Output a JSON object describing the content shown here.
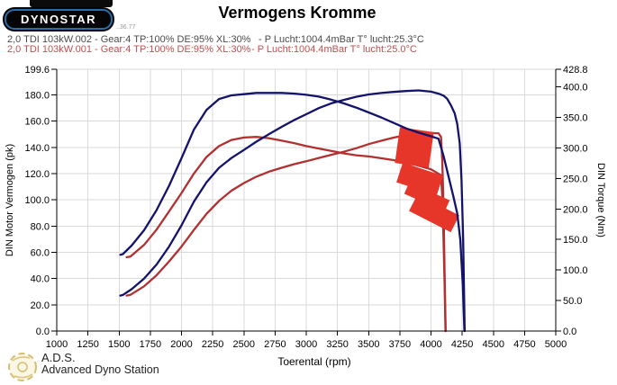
{
  "header": {
    "logo_text": "DYNOSTAR",
    "logo_watermark": "..36.77",
    "title": "Vermogens Kromme"
  },
  "legend": [
    {
      "label": "2,0 TDI 103kW.002 - Gear:4 TP:100% DE:95% XL:30%",
      "conditions": "- P Lucht:1004.4mBar T° lucht:25.3°C",
      "color": "#4a4a4a"
    },
    {
      "label": "2,0 TDI 103kW.001 - Gear:4 TP:100% DE:95% XL:30%",
      "conditions": "- P Lucht:1004.4mBar T° lucht:25.0°C",
      "color": "#c24f4f"
    }
  ],
  "chart_data": {
    "type": "line",
    "title": "Vermogens Kromme",
    "xlabel": "Toerental (rpm)",
    "ylabel_left": "DIN Motor Vermogen (pk)",
    "ylabel_right": "DIN Torque (Nm)",
    "x_range": [
      1000,
      5000
    ],
    "left_range": [
      0,
      199.6
    ],
    "right_range": [
      0,
      428.8
    ],
    "grid": true,
    "x_ticks": [
      "1000",
      "1250",
      "1500",
      "1750",
      "2000",
      "2250",
      "2500",
      "2750",
      "3000",
      "3250",
      "3500",
      "3750",
      "4000",
      "4250",
      "4500",
      "4750",
      "5000"
    ],
    "left_ticks": [
      "199.6",
      "180.0",
      "160.0",
      "140.0",
      "120.0",
      "100.0",
      "80.0",
      "60.0",
      "40.0",
      "20.0",
      "0.0"
    ],
    "right_ticks": [
      "428.8",
      "400.0",
      "350.0",
      "300.0",
      "250.0",
      "200.0",
      "150.0",
      "100.0",
      "50.0",
      "0.0"
    ],
    "series": [
      {
        "name": "torque-run-001",
        "run": "2,0 TDI 103kW.001",
        "axis": "right",
        "unit": "Nm",
        "color": "#b23030",
        "points": [
          [
            1560,
            121
          ],
          [
            1590,
            122
          ],
          [
            1700,
            141
          ],
          [
            1800,
            166
          ],
          [
            1900,
            196
          ],
          [
            2000,
            226
          ],
          [
            2100,
            258
          ],
          [
            2200,
            285
          ],
          [
            2300,
            303
          ],
          [
            2400,
            313
          ],
          [
            2500,
            317
          ],
          [
            2600,
            318
          ],
          [
            2700,
            316
          ],
          [
            2800,
            312
          ],
          [
            2900,
            308
          ],
          [
            3000,
            303
          ],
          [
            3100,
            299
          ],
          [
            3200,
            295
          ],
          [
            3300,
            291
          ],
          [
            3400,
            288
          ],
          [
            3500,
            286
          ],
          [
            3600,
            283
          ],
          [
            3700,
            280
          ],
          [
            3800,
            276
          ],
          [
            3900,
            271
          ],
          [
            4000,
            265
          ],
          [
            4080,
            255
          ],
          [
            4090,
            220
          ],
          [
            4100,
            150
          ],
          [
            4110,
            70
          ],
          [
            4116,
            0
          ]
        ]
      },
      {
        "name": "power-run-001",
        "run": "2,0 TDI 103kW.001",
        "axis": "left",
        "unit": "pk",
        "color": "#b23030",
        "points": [
          [
            1560,
            27
          ],
          [
            1590,
            27.6
          ],
          [
            1700,
            34.1
          ],
          [
            1800,
            42.5
          ],
          [
            1900,
            53.1
          ],
          [
            2000,
            64.4
          ],
          [
            2100,
            77.1
          ],
          [
            2200,
            89.3
          ],
          [
            2300,
            99.2
          ],
          [
            2400,
            107
          ],
          [
            2500,
            112.8
          ],
          [
            2600,
            117.7
          ],
          [
            2700,
            121.5
          ],
          [
            2800,
            124.4
          ],
          [
            2900,
            127.2
          ],
          [
            3000,
            129.4
          ],
          [
            3100,
            132
          ],
          [
            3200,
            134.4
          ],
          [
            3300,
            136.7
          ],
          [
            3400,
            139.4
          ],
          [
            3500,
            142.5
          ],
          [
            3600,
            145.1
          ],
          [
            3700,
            147.5
          ],
          [
            3800,
            149.4
          ],
          [
            3900,
            150.6
          ],
          [
            4000,
            151
          ],
          [
            4060,
            150.8
          ],
          [
            4080,
            148
          ],
          [
            4090,
            130
          ],
          [
            4100,
            95
          ],
          [
            4110,
            40
          ],
          [
            4118,
            0
          ]
        ]
      },
      {
        "name": "torque-run-002",
        "run": "2,0 TDI 103kW.002",
        "axis": "right",
        "unit": "Nm",
        "color": "#13136b",
        "points": [
          [
            1510,
            125
          ],
          [
            1530,
            126
          ],
          [
            1600,
            140
          ],
          [
            1700,
            165
          ],
          [
            1800,
            198
          ],
          [
            1900,
            238
          ],
          [
            2000,
            283
          ],
          [
            2100,
            330
          ],
          [
            2200,
            362
          ],
          [
            2300,
            380
          ],
          [
            2400,
            386
          ],
          [
            2500,
            388
          ],
          [
            2600,
            390
          ],
          [
            2700,
            390
          ],
          [
            2800,
            390
          ],
          [
            2900,
            389
          ],
          [
            3000,
            387
          ],
          [
            3100,
            384
          ],
          [
            3200,
            379
          ],
          [
            3300,
            373
          ],
          [
            3400,
            366
          ],
          [
            3500,
            358
          ],
          [
            3600,
            350
          ],
          [
            3700,
            341
          ],
          [
            3800,
            332
          ],
          [
            3900,
            325
          ],
          [
            4000,
            319
          ],
          [
            4060,
            315
          ],
          [
            4100,
            287
          ],
          [
            4150,
            245
          ],
          [
            4180,
            220
          ],
          [
            4210,
            193
          ],
          [
            4235,
            150
          ],
          [
            4255,
            75
          ],
          [
            4268,
            0
          ]
        ]
      },
      {
        "name": "power-run-002",
        "run": "2,0 TDI 103kW.002",
        "axis": "left",
        "unit": "pk",
        "color": "#13136b",
        "points": [
          [
            1510,
            27
          ],
          [
            1530,
            27.5
          ],
          [
            1600,
            31.9
          ],
          [
            1700,
            39.9
          ],
          [
            1800,
            50.7
          ],
          [
            1900,
            64.4
          ],
          [
            2000,
            80.6
          ],
          [
            2100,
            98.7
          ],
          [
            2200,
            113.4
          ],
          [
            2300,
            124.4
          ],
          [
            2400,
            131.9
          ],
          [
            2500,
            138.1
          ],
          [
            2600,
            144.4
          ],
          [
            2700,
            150
          ],
          [
            2800,
            155.5
          ],
          [
            2900,
            160.7
          ],
          [
            3000,
            165.3
          ],
          [
            3100,
            170
          ],
          [
            3200,
            173.6
          ],
          [
            3300,
            176.2
          ],
          [
            3400,
            178.6
          ],
          [
            3500,
            180.4
          ],
          [
            3600,
            181.5
          ],
          [
            3700,
            182.3
          ],
          [
            3800,
            183
          ],
          [
            3900,
            183.5
          ],
          [
            4000,
            182.5
          ],
          [
            4060,
            181
          ],
          [
            4100,
            179.5
          ],
          [
            4130,
            177
          ],
          [
            4160,
            172
          ],
          [
            4190,
            166
          ],
          [
            4210,
            158
          ],
          [
            4230,
            143
          ],
          [
            4245,
            115
          ],
          [
            4258,
            70
          ],
          [
            4270,
            0
          ]
        ]
      }
    ],
    "annotation": {
      "name": "red-marker",
      "color": "#e63529",
      "chunks": [
        [
          460,
          164,
          38,
          40,
          8
        ],
        [
          466,
          199,
          47,
          23,
          18
        ],
        [
          474,
          219,
          49,
          14,
          24
        ],
        [
          482,
          237,
          52,
          21,
          27
        ]
      ]
    }
  },
  "footer": {
    "abbr": "A.D.S.",
    "name": "Advanced Dyno Station"
  },
  "colors": {
    "grid": "#d9d9d9",
    "axis": "#000000",
    "tick_label": "#000000",
    "run_002_curve": "#13136b",
    "run_001_curve": "#b23030",
    "marker": "#e63529",
    "ads_gold": "#cfae4e"
  }
}
